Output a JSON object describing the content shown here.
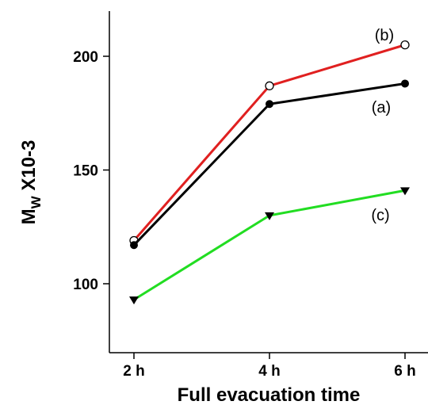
{
  "chart_data": {
    "type": "line",
    "categories": [
      "2 h",
      "4 h",
      "6 h"
    ],
    "xlabel": "Full evacuation time",
    "ylabel": {
      "main": "M",
      "sub": "W",
      "rest": " X10-3"
    },
    "ylim": [
      75,
      220
    ],
    "yticks": [
      100,
      150,
      200
    ],
    "ytick_labels": [
      "100",
      "150",
      "200"
    ],
    "grid": false,
    "series": [
      {
        "name": "(b)",
        "label": "(b)",
        "values": [
          119,
          187,
          205
        ],
        "color": "#e02020",
        "marker": "open-circle"
      },
      {
        "name": "(a)",
        "label": "(a)",
        "values": [
          117,
          179,
          188
        ],
        "color": "#000000",
        "marker": "filled-circle"
      },
      {
        "name": "(c)",
        "label": "(c)",
        "values": [
          93,
          130,
          141
        ],
        "color": "#22dd22",
        "marker": "filled-triangle-down"
      }
    ]
  }
}
